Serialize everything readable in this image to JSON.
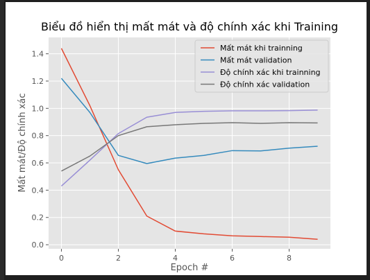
{
  "chart_data": {
    "type": "line",
    "title": "Biểu đồ hiển thị mất mát và độ chính xác khi Training",
    "xlabel": "Epoch #",
    "ylabel": "Mất mát/Độ chính xác",
    "x": [
      0,
      1,
      2,
      3,
      4,
      5,
      6,
      7,
      8,
      9
    ],
    "xlim": [
      -0.45,
      9.45
    ],
    "ylim": [
      -0.03,
      1.52
    ],
    "xticks": [
      0,
      2,
      4,
      6,
      8
    ],
    "yticks": [
      0.0,
      0.2,
      0.4,
      0.6,
      0.8,
      1.0,
      1.2,
      1.4
    ],
    "ytick_labels": [
      "0.0",
      "0.2",
      "0.4",
      "0.6",
      "0.8",
      "1.0",
      "1.2",
      "1.4"
    ],
    "grid": true,
    "legend_position": "top-right",
    "series": [
      {
        "name": "Mất mát khi trainning",
        "color": "#E24A33",
        "values": [
          1.44,
          1.02,
          0.55,
          0.21,
          0.1,
          0.08,
          0.065,
          0.06,
          0.055,
          0.04
        ]
      },
      {
        "name": "Mất mát validation",
        "color": "#348ABD",
        "values": [
          1.22,
          0.97,
          0.655,
          0.595,
          0.635,
          0.655,
          0.69,
          0.688,
          0.708,
          0.722
        ]
      },
      {
        "name": "Độ chính xác khi trainning",
        "color": "#988ED5",
        "values": [
          0.43,
          0.62,
          0.815,
          0.935,
          0.97,
          0.978,
          0.982,
          0.982,
          0.983,
          0.987
        ]
      },
      {
        "name": "Độ chính xác validation",
        "color": "#777777",
        "values": [
          0.54,
          0.65,
          0.8,
          0.865,
          0.88,
          0.89,
          0.895,
          0.89,
          0.895,
          0.893
        ]
      }
    ]
  }
}
